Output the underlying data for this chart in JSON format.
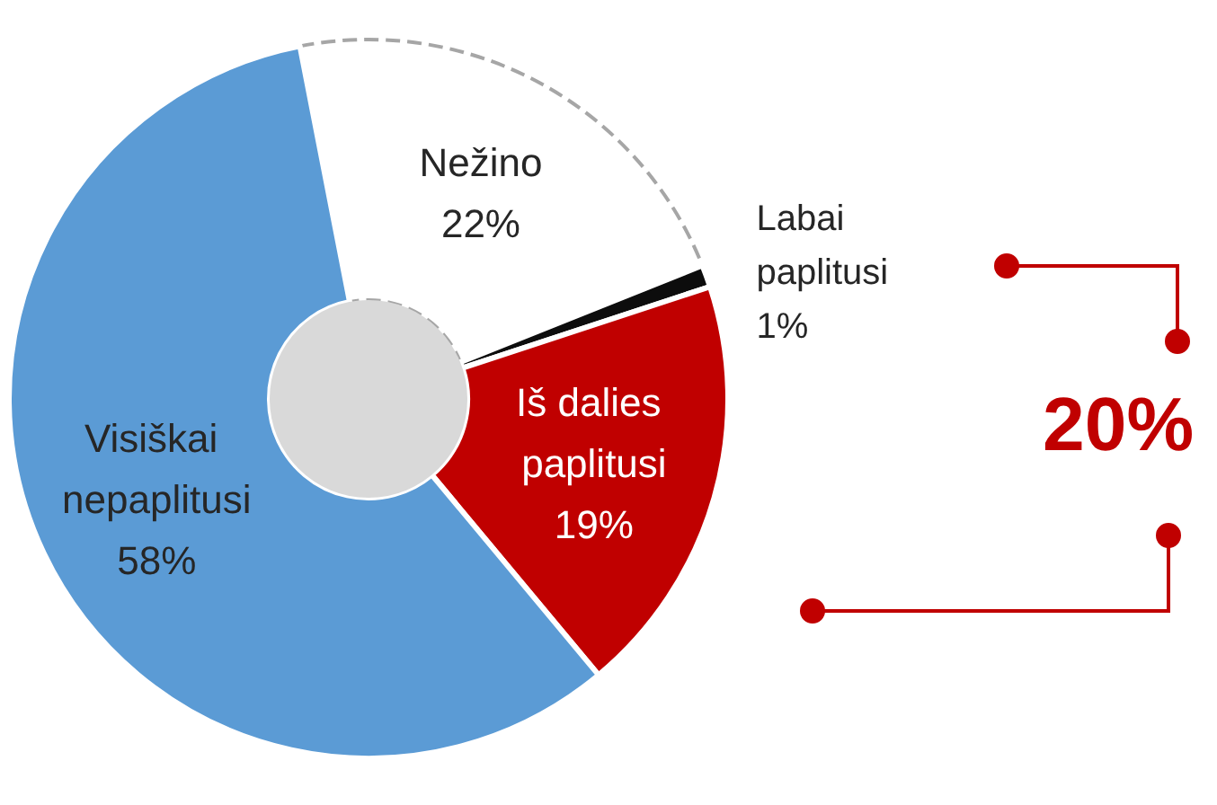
{
  "chart_data": {
    "type": "donut",
    "categories": [
      "Nežino",
      "Labai paplitusi",
      "Iš dalies paplitusi",
      "Visiškai nepaplitusi"
    ],
    "values": [
      22,
      1,
      19,
      58
    ],
    "colors": [
      "#ffffff",
      "#0d0d0d",
      "#c00000",
      "#5b9bd5"
    ],
    "value_labels": [
      "22%",
      "1%",
      "19%",
      "58%"
    ],
    "annotations": [
      "20%"
    ],
    "legend": false
  }
}
